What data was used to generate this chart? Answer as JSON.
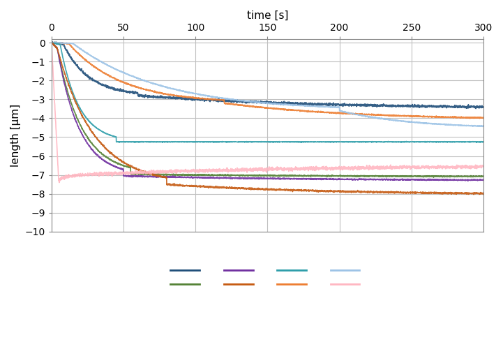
{
  "title": "",
  "xlabel": "time [s]",
  "ylabel": "length [µm]",
  "xlim": [
    0,
    300
  ],
  "ylim": [
    -10,
    0.2
  ],
  "yticks": [
    0,
    -1,
    -2,
    -3,
    -4,
    -5,
    -6,
    -7,
    -8,
    -9,
    -10
  ],
  "xticks": [
    0,
    50,
    100,
    150,
    200,
    250,
    300
  ],
  "series_params": [
    {
      "color": "#1F4E79",
      "t_peak": 8,
      "peak_y": -0.05,
      "t_settle": 60,
      "settle_y": -2.8,
      "final_y": -3.5,
      "noise": 0.1
    },
    {
      "color": "#ED7D31",
      "t_peak": 12,
      "peak_y": -0.05,
      "t_settle": 120,
      "settle_y": -3.2,
      "final_y": -4.1,
      "noise": 0.05
    },
    {
      "color": "#9DC3E6",
      "t_peak": 15,
      "peak_y": -0.05,
      "t_settle": 200,
      "settle_y": -3.6,
      "final_y": -4.55,
      "noise": 0.04
    },
    {
      "color": "#2E9EAA",
      "t_peak": 6,
      "peak_y": -0.1,
      "t_settle": 45,
      "settle_y": -5.25,
      "final_y": -5.25,
      "noise": 0.03
    },
    {
      "color": "#548235",
      "t_peak": 4,
      "peak_y": -0.3,
      "t_settle": 55,
      "settle_y": -6.95,
      "final_y": -7.1,
      "noise": 0.05
    },
    {
      "color": "#7030A0",
      "t_peak": 4,
      "peak_y": -0.3,
      "t_settle": 50,
      "settle_y": -7.05,
      "final_y": -7.3,
      "noise": 0.05
    },
    {
      "color": "#C55A11",
      "t_peak": 4,
      "peak_y": -0.3,
      "t_settle": 80,
      "settle_y": -7.5,
      "final_y": -8.05,
      "noise": 0.07
    },
    {
      "color": "#FFB6C1",
      "t_peak": 5,
      "peak_y": -7.3,
      "t_settle": 20,
      "settle_y": -7.0,
      "final_y": -6.5,
      "noise": 0.15
    }
  ],
  "legend_colors": [
    "#1F4E79",
    "#548235",
    "#7030A0",
    "#C55A11",
    "#2E9EAA",
    "#ED7D31",
    "#9DC3E6",
    "#FFB6C1"
  ],
  "background_color": "#FFFFFF",
  "grid_color": "#C0C0C0"
}
